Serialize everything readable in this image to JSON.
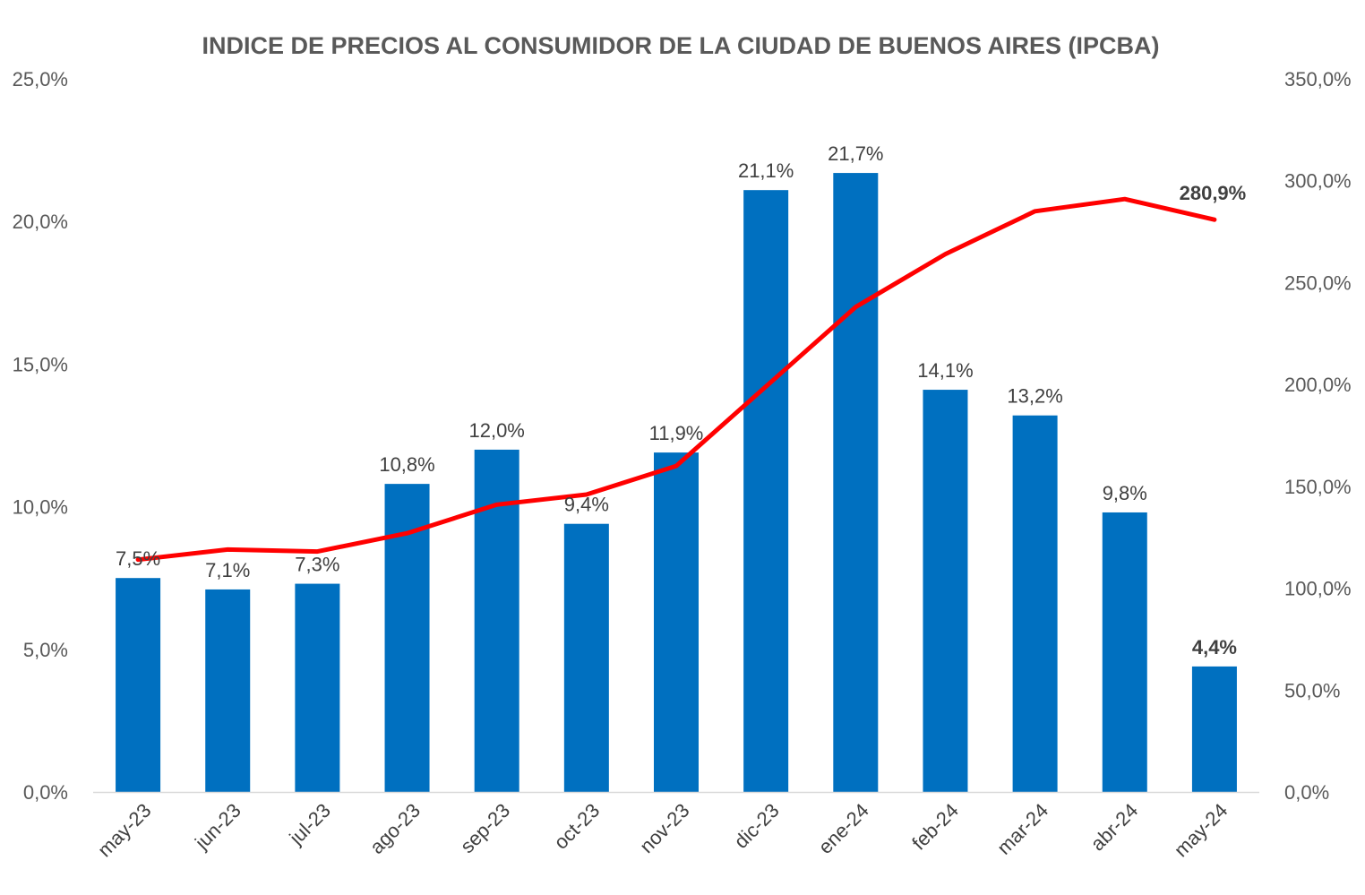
{
  "chart_data": {
    "type": "bar",
    "title": "INDICE DE PRECIOS AL CONSUMIDOR DE LA CIUDAD DE BUENOS AIRES (IPCBA)",
    "categories": [
      "may-23",
      "jun-23",
      "jul-23",
      "ago-23",
      "sep-23",
      "oct-23",
      "nov-23",
      "dic-23",
      "ene-24",
      "feb-24",
      "mar-24",
      "abr-24",
      "may-24"
    ],
    "series": [
      {
        "type": "bar",
        "axis": "left",
        "color": "#0070C0",
        "values": [
          7.5,
          7.1,
          7.3,
          10.8,
          12.0,
          9.4,
          11.9,
          21.1,
          21.7,
          14.1,
          13.2,
          9.8,
          4.4
        ],
        "labels": [
          "7,5%",
          "7,1%",
          "7,3%",
          "10,8%",
          "12,0%",
          "9,4%",
          "11,9%",
          "21,1%",
          "21,7%",
          "14,1%",
          "13,2%",
          "9,8%",
          "4,4%"
        ]
      },
      {
        "type": "line",
        "axis": "right",
        "color": "#FF0000",
        "values": [
          114,
          119,
          118,
          127,
          141,
          146,
          160,
          199,
          238,
          264,
          285,
          291,
          280.9
        ],
        "labels": [
          "",
          "",
          "",
          "",
          "",
          "",
          "",
          "",
          "",
          "",
          "",
          "",
          "280,9%"
        ]
      }
    ],
    "y_left": {
      "ylim": [
        0,
        25
      ],
      "ticks": [
        "0,0%",
        "5,0%",
        "10,0%",
        "15,0%",
        "20,0%",
        "25,0%"
      ]
    },
    "y_right": {
      "ylim": [
        0,
        350
      ],
      "ticks": [
        "0,0%",
        "50,0%",
        "100,0%",
        "150,0%",
        "200,0%",
        "250,0%",
        "300,0%",
        "350,0%"
      ]
    },
    "highlight_color_last_bar": "#0070C0",
    "highlight_color_last_point": "#FF0000",
    "grid": false,
    "legend": "none"
  }
}
